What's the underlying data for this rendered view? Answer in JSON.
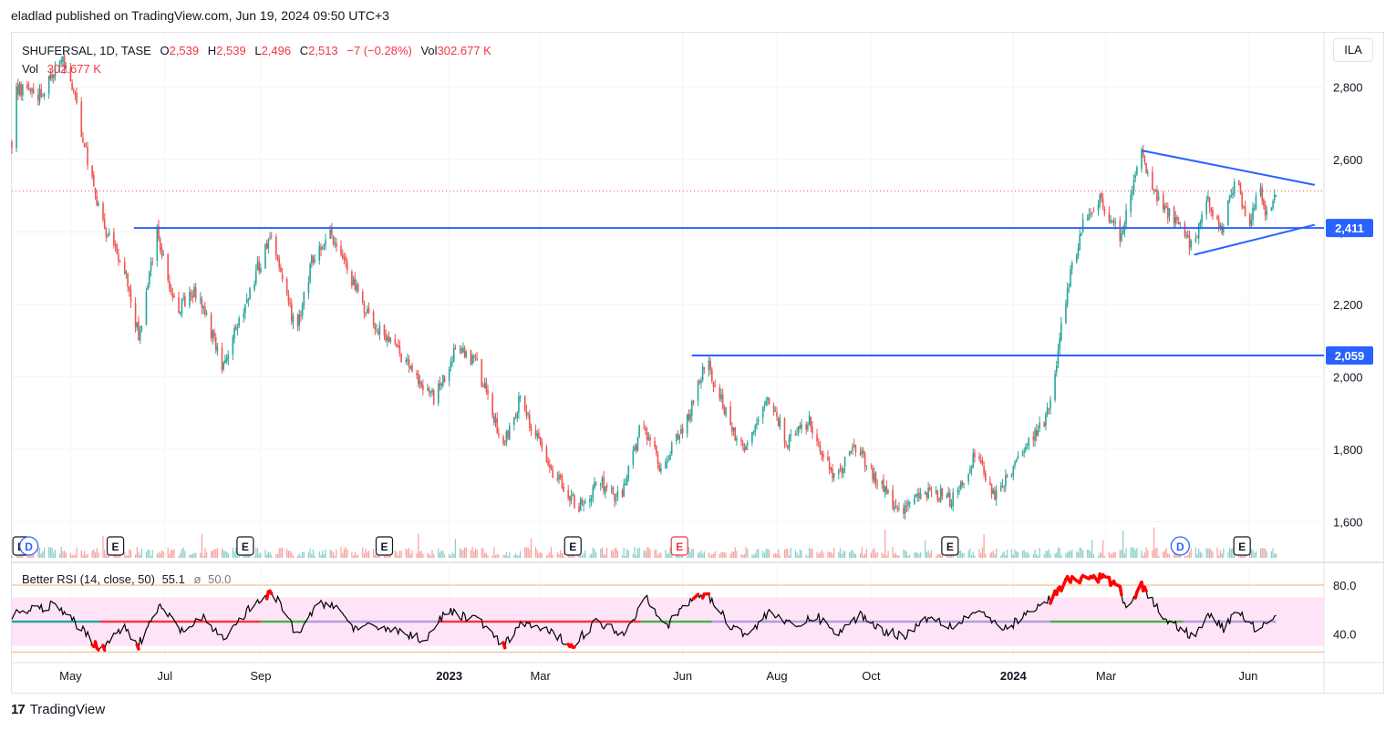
{
  "header": {
    "text": "eladlad published on TradingView.com, Jun 19, 2024 09:50 UTC+3"
  },
  "legend": {
    "symbol": "SHUFERSAL, 1D, TASE",
    "open_label": "O",
    "open": "2,539",
    "high_label": "H",
    "high": "2,539",
    "low_label": "L",
    "low": "2,496",
    "close_label": "C",
    "close": "2,513",
    "change": "−7 (−0.28%)",
    "vol_label": "Vol",
    "vol": "302.677 K",
    "vol2_label": "Vol",
    "vol2": "302.677 K"
  },
  "currency": "ILA",
  "rsi_legend": {
    "name": "Better RSI (14, close, 50)",
    "value": "55.1",
    "sep": "ø",
    "value2": "50.0"
  },
  "footer": {
    "logo": "17",
    "brand": "TradingView"
  },
  "colors": {
    "up": "#26a69a",
    "down": "#ef5350",
    "line": "#2962ff",
    "rsi": "#000000",
    "rsi_band": "#ffe4f7"
  },
  "chart_data": [
    {
      "type": "candlestick",
      "ylim": [
        1500,
        2950
      ],
      "y_ticks": [
        "2,800",
        "2,600",
        "2,400",
        "2,200",
        "2,000",
        "1,800",
        "1,600"
      ],
      "y_tick_values": [
        2800,
        2600,
        2400,
        2200,
        2000,
        1800,
        1600
      ],
      "x_tick_labels": [
        "May",
        "Jul",
        "Sep",
        "2023",
        "Mar",
        "Jun",
        "Aug",
        "Oct",
        "2024",
        "Mar",
        "Jun"
      ],
      "x_tick_dates": [
        "2022-05-01",
        "2022-07-01",
        "2022-09-01",
        "2023-01-01",
        "2023-03-01",
        "2023-06-01",
        "2023-08-01",
        "2023-10-01",
        "2024-01-01",
        "2024-03-01",
        "2024-06-01"
      ],
      "x_range": [
        "2022-03-24",
        "2024-07-20"
      ],
      "price_path": [
        {
          "date": "2022-03-24",
          "price": 2650
        },
        {
          "date": "2022-03-27",
          "price": 2800
        },
        {
          "date": "2022-04-10",
          "price": 2770
        },
        {
          "date": "2022-04-25",
          "price": 2880
        },
        {
          "date": "2022-05-01",
          "price": 2820
        },
        {
          "date": "2022-05-12",
          "price": 2600
        },
        {
          "date": "2022-05-22",
          "price": 2420
        },
        {
          "date": "2022-06-05",
          "price": 2300
        },
        {
          "date": "2022-06-14",
          "price": 2110
        },
        {
          "date": "2022-06-26",
          "price": 2410
        },
        {
          "date": "2022-07-08",
          "price": 2180
        },
        {
          "date": "2022-07-22",
          "price": 2240
        },
        {
          "date": "2022-08-07",
          "price": 2030
        },
        {
          "date": "2022-08-26",
          "price": 2250
        },
        {
          "date": "2022-09-08",
          "price": 2400
        },
        {
          "date": "2022-09-24",
          "price": 2120
        },
        {
          "date": "2022-10-04",
          "price": 2320
        },
        {
          "date": "2022-10-16",
          "price": 2400
        },
        {
          "date": "2022-10-28",
          "price": 2280
        },
        {
          "date": "2022-11-10",
          "price": 2170
        },
        {
          "date": "2022-11-30",
          "price": 2060
        },
        {
          "date": "2022-12-22",
          "price": 1940
        },
        {
          "date": "2023-01-06",
          "price": 2080
        },
        {
          "date": "2023-01-18",
          "price": 2040
        },
        {
          "date": "2023-02-05",
          "price": 1810
        },
        {
          "date": "2023-02-16",
          "price": 1940
        },
        {
          "date": "2023-03-05",
          "price": 1760
        },
        {
          "date": "2023-03-26",
          "price": 1640
        },
        {
          "date": "2023-04-08",
          "price": 1710
        },
        {
          "date": "2023-04-22",
          "price": 1660
        },
        {
          "date": "2023-05-06",
          "price": 1880
        },
        {
          "date": "2023-05-18",
          "price": 1740
        },
        {
          "date": "2023-06-06",
          "price": 1900
        },
        {
          "date": "2023-06-16",
          "price": 2050
        },
        {
          "date": "2023-07-02",
          "price": 1860
        },
        {
          "date": "2023-07-12",
          "price": 1800
        },
        {
          "date": "2023-07-26",
          "price": 1930
        },
        {
          "date": "2023-08-08",
          "price": 1820
        },
        {
          "date": "2023-08-22",
          "price": 1880
        },
        {
          "date": "2023-09-07",
          "price": 1720
        },
        {
          "date": "2023-09-22",
          "price": 1810
        },
        {
          "date": "2023-10-04",
          "price": 1720
        },
        {
          "date": "2023-10-20",
          "price": 1620
        },
        {
          "date": "2023-11-07",
          "price": 1690
        },
        {
          "date": "2023-11-22",
          "price": 1660
        },
        {
          "date": "2023-12-08",
          "price": 1790
        },
        {
          "date": "2023-12-20",
          "price": 1660
        },
        {
          "date": "2024-01-06",
          "price": 1780
        },
        {
          "date": "2024-01-20",
          "price": 1870
        },
        {
          "date": "2024-01-26",
          "price": 1930
        },
        {
          "date": "2024-02-01",
          "price": 2150
        },
        {
          "date": "2024-02-08",
          "price": 2300
        },
        {
          "date": "2024-02-16",
          "price": 2440
        },
        {
          "date": "2024-02-26",
          "price": 2490
        },
        {
          "date": "2024-03-10",
          "price": 2390
        },
        {
          "date": "2024-03-24",
          "price": 2610
        },
        {
          "date": "2024-04-06",
          "price": 2470
        },
        {
          "date": "2024-04-16",
          "price": 2420
        },
        {
          "date": "2024-04-26",
          "price": 2360
        },
        {
          "date": "2024-05-06",
          "price": 2500
        },
        {
          "date": "2024-05-14",
          "price": 2400
        },
        {
          "date": "2024-05-24",
          "price": 2540
        },
        {
          "date": "2024-06-02",
          "price": 2420
        },
        {
          "date": "2024-06-08",
          "price": 2530
        },
        {
          "date": "2024-06-12",
          "price": 2450
        },
        {
          "date": "2024-06-19",
          "price": 2513
        }
      ],
      "last_price": 2513,
      "horizontal_lines": [
        {
          "price": 2411,
          "label": "2,411",
          "from_date": "2022-06-11"
        },
        {
          "price": 2059,
          "label": "2,059",
          "from_date": "2023-06-07"
        }
      ],
      "triangle": {
        "upper": [
          {
            "date": "2024-03-24",
            "price": 2625
          },
          {
            "date": "2024-07-14",
            "price": 2530
          }
        ],
        "lower": [
          {
            "date": "2024-04-27",
            "price": 2337
          },
          {
            "date": "2024-07-14",
            "price": 2420
          }
        ]
      },
      "earnings_markers": [
        {
          "date": "2022-03-30",
          "label": "E"
        },
        {
          "date": "2022-05-30",
          "label": "E"
        },
        {
          "date": "2022-08-22",
          "label": "E"
        },
        {
          "date": "2022-11-20",
          "label": "E"
        },
        {
          "date": "2023-03-22",
          "label": "E"
        },
        {
          "date": "2023-05-30",
          "label": "E",
          "color": "red"
        },
        {
          "date": "2023-11-21",
          "label": "E"
        },
        {
          "date": "2024-05-28",
          "label": "E"
        }
      ],
      "dividend_markers": [
        {
          "date": "2022-04-04",
          "label": "D"
        },
        {
          "date": "2024-04-18",
          "label": "D"
        }
      ]
    },
    {
      "type": "line",
      "name": "Better RSI (14, close, 50)",
      "ylim": [
        20,
        95
      ],
      "y_ticks": [
        "80.0",
        "40.0"
      ],
      "y_tick_values": [
        80,
        40
      ],
      "bands": [
        70,
        50,
        30
      ],
      "rsi_path": [
        {
          "date": "2022-03-24",
          "value": 55
        },
        {
          "date": "2022-04-20",
          "value": 64
        },
        {
          "date": "2022-05-10",
          "value": 42
        },
        {
          "date": "2022-05-20",
          "value": 27
        },
        {
          "date": "2022-06-05",
          "value": 46
        },
        {
          "date": "2022-06-14",
          "value": 31
        },
        {
          "date": "2022-06-28",
          "value": 63
        },
        {
          "date": "2022-07-12",
          "value": 42
        },
        {
          "date": "2022-07-26",
          "value": 52
        },
        {
          "date": "2022-08-08",
          "value": 36
        },
        {
          "date": "2022-08-26",
          "value": 62
        },
        {
          "date": "2022-09-09",
          "value": 74
        },
        {
          "date": "2022-09-25",
          "value": 38
        },
        {
          "date": "2022-10-06",
          "value": 62
        },
        {
          "date": "2022-10-17",
          "value": 66
        },
        {
          "date": "2022-11-01",
          "value": 44
        },
        {
          "date": "2022-11-20",
          "value": 46
        },
        {
          "date": "2022-12-16",
          "value": 35
        },
        {
          "date": "2022-12-30",
          "value": 58
        },
        {
          "date": "2023-01-20",
          "value": 52
        },
        {
          "date": "2023-02-05",
          "value": 29
        },
        {
          "date": "2023-02-18",
          "value": 50
        },
        {
          "date": "2023-03-05",
          "value": 42
        },
        {
          "date": "2023-03-22",
          "value": 31
        },
        {
          "date": "2023-04-06",
          "value": 50
        },
        {
          "date": "2023-04-25",
          "value": 40
        },
        {
          "date": "2023-05-08",
          "value": 72
        },
        {
          "date": "2023-05-22",
          "value": 46
        },
        {
          "date": "2023-06-02",
          "value": 63
        },
        {
          "date": "2023-06-16",
          "value": 74
        },
        {
          "date": "2023-07-01",
          "value": 48
        },
        {
          "date": "2023-07-14",
          "value": 39
        },
        {
          "date": "2023-07-28",
          "value": 60
        },
        {
          "date": "2023-08-12",
          "value": 44
        },
        {
          "date": "2023-08-26",
          "value": 55
        },
        {
          "date": "2023-09-10",
          "value": 40
        },
        {
          "date": "2023-09-24",
          "value": 56
        },
        {
          "date": "2023-10-08",
          "value": 43
        },
        {
          "date": "2023-10-22",
          "value": 38
        },
        {
          "date": "2023-11-08",
          "value": 55
        },
        {
          "date": "2023-11-22",
          "value": 46
        },
        {
          "date": "2023-12-10",
          "value": 60
        },
        {
          "date": "2023-12-24",
          "value": 42
        },
        {
          "date": "2024-01-10",
          "value": 56
        },
        {
          "date": "2024-01-20",
          "value": 64
        },
        {
          "date": "2024-01-28",
          "value": 72
        },
        {
          "date": "2024-02-05",
          "value": 84
        },
        {
          "date": "2024-02-22",
          "value": 86
        },
        {
          "date": "2024-03-08",
          "value": 83
        },
        {
          "date": "2024-03-14",
          "value": 62
        },
        {
          "date": "2024-03-24",
          "value": 80
        },
        {
          "date": "2024-04-06",
          "value": 55
        },
        {
          "date": "2024-04-16",
          "value": 46
        },
        {
          "date": "2024-04-27",
          "value": 37
        },
        {
          "date": "2024-05-06",
          "value": 58
        },
        {
          "date": "2024-05-16",
          "value": 44
        },
        {
          "date": "2024-05-26",
          "value": 60
        },
        {
          "date": "2024-06-05",
          "value": 44
        },
        {
          "date": "2024-06-12",
          "value": 50
        },
        {
          "date": "2024-06-19",
          "value": 55
        }
      ]
    }
  ]
}
